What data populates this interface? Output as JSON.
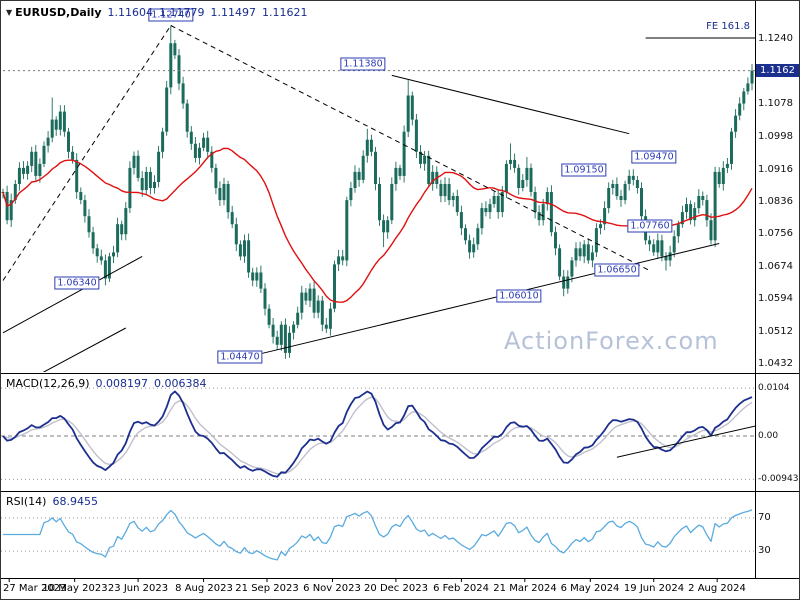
{
  "price_panel": {
    "symbol_label": "EURUSD,Daily",
    "open": "1.11604",
    "high": "1.11779",
    "low": "1.11497",
    "close": "1.11621",
    "current_price_tag": "1.1162",
    "watermark": "ActionForex.com"
  },
  "macd_panel": {
    "label": "MACD(12,26,9)",
    "value1": "0.008197",
    "value2": "0.006384"
  },
  "rsi_panel": {
    "label": "RSI(14)",
    "value": "68.9455"
  },
  "chart_data": {
    "type": "candlestick",
    "symbol": "EURUSD",
    "timeframe": "Daily",
    "current": {
      "open": 1.11604,
      "high": 1.11779,
      "low": 1.11497,
      "close": 1.11621
    },
    "close_series": [
      1.086,
      1.079,
      1.084,
      1.088,
      1.092,
      1.0905,
      1.0925,
      1.096,
      1.09,
      1.093,
      1.0975,
      1.0995,
      1.104,
      1.1015,
      1.106,
      1.101,
      1.096,
      1.094,
      1.086,
      1.084,
      1.08,
      1.076,
      1.072,
      1.07,
      1.069,
      1.0645,
      1.07,
      1.071,
      1.078,
      1.0755,
      1.082,
      1.092,
      1.095,
      1.0895,
      1.0865,
      1.091,
      1.087,
      1.0885,
      1.096,
      1.101,
      1.112,
      1.123,
      1.12,
      1.113,
      1.108,
      1.101,
      1.098,
      1.0945,
      1.097,
      1.0995,
      1.096,
      1.092,
      1.087,
      1.084,
      1.088,
      1.081,
      1.078,
      1.073,
      1.07,
      1.074,
      1.066,
      1.064,
      1.066,
      1.062,
      1.057,
      1.053,
      1.05,
      1.048,
      1.053,
      1.046,
      1.051,
      1.053,
      1.056,
      1.061,
      1.059,
      1.062,
      1.056,
      1.059,
      1.053,
      1.052,
      1.057,
      1.068,
      1.07,
      1.069,
      1.084,
      1.087,
      1.091,
      1.089,
      1.095,
      1.099,
      1.096,
      1.088,
      1.079,
      1.076,
      1.079,
      1.088,
      1.092,
      1.09,
      1.101,
      1.11,
      1.104,
      1.096,
      1.093,
      1.095,
      1.088,
      1.091,
      1.088,
      1.085,
      1.088,
      1.084,
      1.085,
      1.081,
      1.077,
      1.074,
      1.071,
      1.073,
      1.077,
      1.082,
      1.081,
      1.083,
      1.085,
      1.081,
      1.086,
      1.093,
      1.094,
      1.092,
      1.087,
      1.089,
      1.092,
      1.086,
      1.081,
      1.079,
      1.083,
      1.086,
      1.076,
      1.072,
      1.065,
      1.062,
      1.065,
      1.069,
      1.072,
      1.07,
      1.073,
      1.069,
      1.071,
      1.077,
      1.078,
      1.082,
      1.087,
      1.088,
      1.085,
      1.084,
      1.088,
      1.09,
      1.089,
      1.087,
      1.08,
      1.074,
      1.073,
      1.071,
      1.074,
      1.07,
      1.069,
      1.071,
      1.075,
      1.078,
      1.081,
      1.083,
      1.079,
      1.082,
      1.085,
      1.084,
      1.079,
      1.074,
      1.091,
      1.088,
      1.092,
      1.093,
      1.101,
      1.105,
      1.108,
      1.111,
      1.113,
      1.1162
    ],
    "extremes": [
      {
        "i": 12,
        "high": 1.1095
      },
      {
        "i": 25,
        "low": 1.0634
      },
      {
        "i": 41,
        "high": 1.1274
      },
      {
        "i": 69,
        "low": 1.0447
      },
      {
        "i": 89,
        "high": 1.1017
      },
      {
        "i": 93,
        "low": 1.0723
      },
      {
        "i": 99,
        "high": 1.1138
      },
      {
        "i": 114,
        "low": 1.0694
      },
      {
        "i": 124,
        "high": 1.0981
      },
      {
        "i": 128,
        "high": 1.0947
      },
      {
        "i": 137,
        "low": 1.0601
      },
      {
        "i": 154,
        "high": 1.0916
      },
      {
        "i": 162,
        "low": 1.0665
      },
      {
        "i": 183,
        "high": 1.1178
      }
    ],
    "indicators": {
      "ma": {
        "type": "moving-average",
        "color": "#e01010"
      },
      "macd": {
        "fast": 12,
        "slow": 26,
        "signal": 9,
        "values": [
          0.008197,
          0.006384
        ]
      },
      "rsi": {
        "period": 14,
        "value": 68.9455
      }
    },
    "price_axis": [
      {
        "text": "1.1240",
        "price": 1.124
      },
      {
        "text": "1.1078",
        "price": 1.1078
      },
      {
        "text": "1.0998",
        "price": 1.0998
      },
      {
        "text": "1.0916",
        "price": 1.0916
      },
      {
        "text": "1.0836",
        "price": 1.0836
      },
      {
        "text": "1.0756",
        "price": 1.0756
      },
      {
        "text": "1.0674",
        "price": 1.0674
      },
      {
        "text": "1.0594",
        "price": 1.0594
      },
      {
        "text": "1.0512",
        "price": 1.0512
      },
      {
        "text": "1.0432",
        "price": 1.0432
      }
    ],
    "current_price": 1.1162,
    "macd_axis": [
      {
        "text": "0.0104",
        "value": 0.0104
      },
      {
        "text": "0.00",
        "value": 0
      },
      {
        "text": "-0.009435",
        "value": -0.009435
      }
    ],
    "rsi_axis": [
      {
        "text": "70",
        "value": 70
      },
      {
        "text": "30",
        "value": 30
      }
    ],
    "x_labels": [
      {
        "text": "27 Mar 2023",
        "i": 1.5
      },
      {
        "text": "10 May 2023",
        "i": 17.5
      },
      {
        "text": "23 Jun 2023",
        "i": 33
      },
      {
        "text": "8 Aug 2023",
        "i": 49
      },
      {
        "text": "21 Sep 2023",
        "i": 64.5
      },
      {
        "text": "6 Nov 2023",
        "i": 80.5
      },
      {
        "text": "20 Dec 2023",
        "i": 96
      },
      {
        "text": "6 Feb 2024",
        "i": 112
      },
      {
        "text": "21 Mar 2024",
        "i": 127.5
      },
      {
        "text": "6 May 2024",
        "i": 143.5
      },
      {
        "text": "19 Jun 2024",
        "i": 159
      },
      {
        "text": "2 Aug 2024",
        "i": 174.5
      }
    ],
    "callouts": [
      {
        "text": "1.12740",
        "i": 41,
        "price": 1.1274,
        "placement": "above"
      },
      {
        "text": "1.11380",
        "i": 88,
        "price": 1.115,
        "placement": "above"
      },
      {
        "text": "1.06340",
        "i": 18,
        "price": 1.0634,
        "placement": "level"
      },
      {
        "text": "1.04470",
        "i": 58,
        "price": 1.045,
        "placement": "level"
      },
      {
        "text": "1.06010",
        "i": 126,
        "price": 1.0601,
        "placement": "level"
      },
      {
        "text": "1.06650",
        "i": 150,
        "price": 1.0665,
        "placement": "level"
      },
      {
        "text": "1.07760",
        "i": 158,
        "price": 1.0776,
        "placement": "level"
      },
      {
        "text": "1.09150",
        "i": 142,
        "price": 1.0915,
        "placement": "level"
      },
      {
        "text": "1.09470",
        "i": 159,
        "price": 1.0947,
        "placement": "level"
      }
    ],
    "fe_level": {
      "text": "FE 161.8",
      "price": 1.1243
    },
    "trendlines": [
      {
        "panel": "price",
        "from": [
          0,
          1.064
        ],
        "to": [
          41,
          1.1274
        ],
        "style": "dashed"
      },
      {
        "panel": "price",
        "from": [
          41,
          1.1274
        ],
        "to": [
          158,
          1.0665
        ],
        "style": "dashed"
      },
      {
        "panel": "price",
        "from": [
          95,
          1.115
        ],
        "to": [
          153,
          1.1005
        ],
        "style": "solid"
      },
      {
        "panel": "price",
        "from": [
          63,
          1.0458
        ],
        "to": [
          175,
          1.0732
        ],
        "style": "solid"
      },
      {
        "panel": "price",
        "from": [
          0,
          1.051
        ],
        "to": [
          34,
          1.07
        ],
        "style": "solid"
      },
      {
        "panel": "price",
        "from": [
          0,
          1.0358
        ],
        "to": [
          30,
          1.0522
        ],
        "style": "solid"
      },
      {
        "panel": "price",
        "from": [
          157,
          1.1243
        ],
        "to": [
          184,
          1.1243
        ],
        "style": "solid"
      },
      {
        "panel": "price",
        "from": [
          0,
          1.1162
        ],
        "to": [
          184,
          1.1162
        ],
        "style": "dotted",
        "color": "#777777"
      },
      {
        "panel": "macd",
        "from": [
          150,
          -0.0046
        ],
        "to": [
          184,
          0.0022
        ],
        "style": "solid"
      }
    ],
    "colors": {
      "candle": "#1c6b5c",
      "ma": "#e01010",
      "macd_line": "#1c2f8f",
      "macd_signal": "#c0c0cc",
      "rsi_line": "#5aabdf",
      "trendline": "#000000",
      "grid_dotted": "#999999",
      "callout": "#2d3db3",
      "price_tag_bg": "#1b2f8e",
      "watermark": "#b6c2d8"
    }
  }
}
